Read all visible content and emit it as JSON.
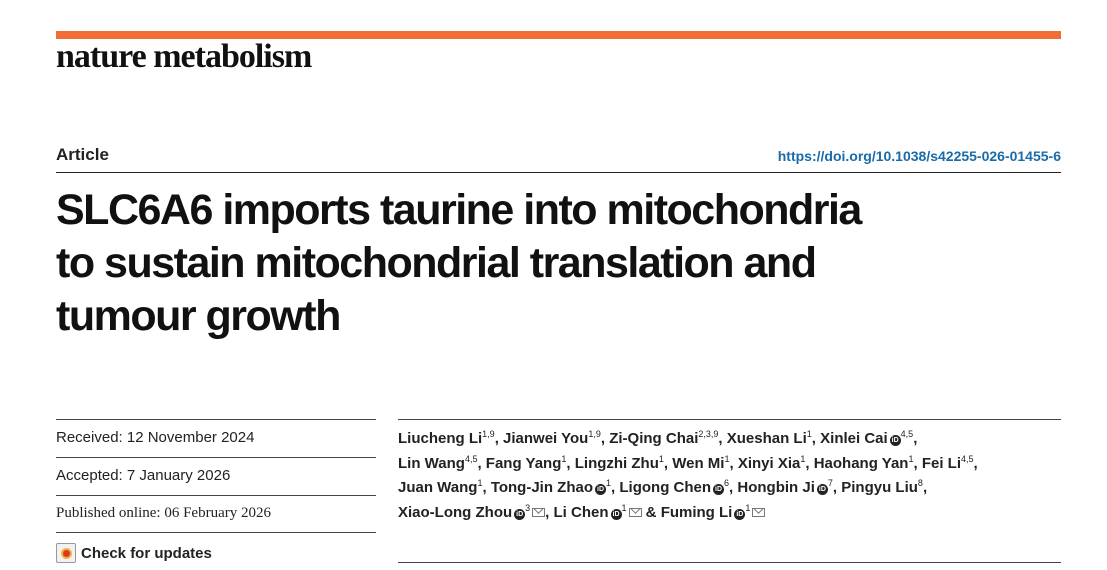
{
  "header": {
    "brand_color": "#f26c35",
    "journal": "nature metabolism",
    "article_type": "Article",
    "doi": "https://doi.org/10.1038/s42255-026-01455-6"
  },
  "title": {
    "lines": [
      "SLC6A6 imports taurine into mitochondria",
      "to sustain mitochondrial translation and",
      "tumour growth"
    ]
  },
  "dates": {
    "received": "Received: 12 November 2024",
    "accepted": "Accepted: 7 January 2026",
    "published": "Published online: 06 February 2026",
    "check_updates": "Check for updates"
  },
  "authors": [
    {
      "name": "Liucheng Li",
      "aff": "1,9",
      "sep": ", "
    },
    {
      "name": "Jianwei You",
      "aff": "1,9",
      "sep": ", "
    },
    {
      "name": "Zi-Qing Chai",
      "aff": "2,3,9",
      "sep": ", "
    },
    {
      "name": "Xueshan Li",
      "aff": "1",
      "sep": ", "
    },
    {
      "name": "Xinlei Cai",
      "orcid": true,
      "aff": "4,5",
      "sep": ","
    },
    {
      "name": "Lin Wang",
      "aff": "4,5",
      "sep": ", "
    },
    {
      "name": "Fang Yang",
      "aff": "1",
      "sep": ", "
    },
    {
      "name": "Lingzhi Zhu",
      "aff": "1",
      "sep": ", "
    },
    {
      "name": "Wen Mi",
      "aff": "1",
      "sep": ", "
    },
    {
      "name": "Xinyi Xia",
      "aff": "1",
      "sep": ", "
    },
    {
      "name": "Haohang Yan",
      "aff": "1",
      "sep": ", "
    },
    {
      "name": "Fei Li",
      "aff": "4,5",
      "sep": ","
    },
    {
      "name": "Juan Wang",
      "aff": "1",
      "sep": ", "
    },
    {
      "name": "Tong-Jin Zhao",
      "orcid": true,
      "aff": "1",
      "sep": ", "
    },
    {
      "name": "Ligong Chen",
      "orcid": true,
      "aff": "6",
      "sep": ", "
    },
    {
      "name": "Hongbin Ji",
      "orcid": true,
      "aff": "7",
      "sep": ", "
    },
    {
      "name": "Pingyu Liu",
      "aff": "8",
      "sep": ","
    },
    {
      "name": "Xiao-Long Zhou",
      "orcid": true,
      "aff": "3",
      "mail": true,
      "sep": ", "
    },
    {
      "name": "Li Chen",
      "orcid": true,
      "aff": "1",
      "mail": true,
      "sep": " & "
    },
    {
      "name": "Fuming Li",
      "orcid": true,
      "aff": "1",
      "mail": true,
      "sep": ""
    }
  ],
  "author_lines": [
    [
      0,
      1,
      2,
      3,
      4
    ],
    [
      5,
      6,
      7,
      8,
      9,
      10,
      11
    ],
    [
      12,
      13,
      14,
      15,
      16
    ],
    [
      17,
      18,
      19
    ]
  ]
}
